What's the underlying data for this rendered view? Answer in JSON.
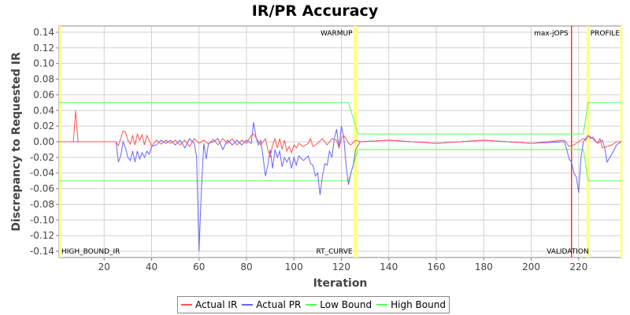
{
  "chart_data": {
    "type": "line",
    "title": "IR/PR Accuracy",
    "xlabel": "Iteration",
    "ylabel": "Discrepancy to Requested IR",
    "xlim": [
      1,
      238
    ],
    "ylim": [
      -0.148,
      0.148
    ],
    "x_ticks": [
      20,
      40,
      60,
      80,
      100,
      120,
      140,
      160,
      180,
      200,
      220
    ],
    "y_ticks": [
      -0.14,
      -0.12,
      -0.1,
      -0.08,
      -0.06,
      -0.04,
      -0.02,
      0.0,
      0.02,
      0.04,
      0.06,
      0.08,
      0.1,
      0.12,
      0.14
    ],
    "y_tick_labels": [
      "-0.14",
      "-0.12",
      "-0.10",
      "-0.08",
      "-0.06",
      "-0.04",
      "-0.02",
      "0.00",
      "0.02",
      "0.04",
      "0.06",
      "0.08",
      "0.10",
      "0.12",
      "0.14"
    ],
    "grid": true,
    "legend_position": "bottom",
    "series": [
      {
        "name": "Actual IR",
        "color": "#ff5555",
        "points": [
          [
            1,
            0
          ],
          [
            7,
            0
          ],
          [
            8,
            0.04
          ],
          [
            9,
            0
          ],
          [
            25,
            0
          ],
          [
            26,
            -0.005
          ],
          [
            27,
            0.004
          ],
          [
            28,
            0.014
          ],
          [
            29,
            0.012
          ],
          [
            30,
            0.002
          ],
          [
            31,
            -0.003
          ],
          [
            32,
            0.008
          ],
          [
            33,
            -0.004
          ],
          [
            34,
            0.01
          ],
          [
            35,
            0.002
          ],
          [
            36,
            0.009
          ],
          [
            37,
            -0.004
          ],
          [
            38,
            0.008
          ],
          [
            39,
            0.002
          ],
          [
            40,
            -0.006
          ],
          [
            42,
            0.002
          ],
          [
            44,
            -0.003
          ],
          [
            46,
            0.002
          ],
          [
            48,
            -0.002
          ],
          [
            50,
            0.002
          ],
          [
            52,
            -0.004
          ],
          [
            54,
            0.002
          ],
          [
            56,
            -0.006
          ],
          [
            58,
            0.004
          ],
          [
            60,
            -0.002
          ],
          [
            62,
            0.002
          ],
          [
            64,
            -0.003
          ],
          [
            66,
            0.003
          ],
          [
            68,
            -0.004
          ],
          [
            70,
            0.004
          ],
          [
            72,
            -0.002
          ],
          [
            74,
            0.004
          ],
          [
            76,
            -0.004
          ],
          [
            78,
            0.002
          ],
          [
            80,
            -0.002
          ],
          [
            82,
            0.008
          ],
          [
            83,
            0.01
          ],
          [
            84,
            0.005
          ],
          [
            86,
            -0.004
          ],
          [
            88,
            0.004
          ],
          [
            89,
            -0.01
          ],
          [
            90,
            -0.02
          ],
          [
            91,
            -0.004
          ],
          [
            92,
            0.004
          ],
          [
            93,
            -0.008
          ],
          [
            94,
            0.004
          ],
          [
            95,
            -0.01
          ],
          [
            96,
            0.002
          ],
          [
            97,
            -0.012
          ],
          [
            98,
            -0.006
          ],
          [
            99,
            -0.014
          ],
          [
            100,
            -0.004
          ],
          [
            101,
            -0.008
          ],
          [
            102,
            -0.002
          ],
          [
            104,
            -0.006
          ],
          [
            106,
            -0.002
          ],
          [
            107,
            0.004
          ],
          [
            108,
            -0.006
          ],
          [
            110,
            -0.002
          ],
          [
            112,
            0.004
          ],
          [
            114,
            -0.004
          ],
          [
            116,
            0.004
          ],
          [
            118,
            0.002
          ],
          [
            119,
            -0.008
          ],
          [
            120,
            0.004
          ],
          [
            121,
            0.008
          ],
          [
            122,
            0.004
          ],
          [
            123,
            -0.002
          ],
          [
            124,
            -0.004
          ],
          [
            126,
            0.002
          ],
          [
            128,
            0
          ],
          [
            140,
            0.002
          ],
          [
            160,
            -0.002
          ],
          [
            180,
            0.002
          ],
          [
            200,
            -0.002
          ],
          [
            214,
            0.002
          ],
          [
            216,
            -0.006
          ],
          [
            218,
            -0.004
          ],
          [
            220,
            0
          ],
          [
            222,
            0.004
          ],
          [
            223,
            0.002
          ],
          [
            224,
            0.008
          ],
          [
            225,
            0.004
          ],
          [
            226,
            0.006
          ],
          [
            227,
            0.002
          ],
          [
            228,
            -0.002
          ],
          [
            229,
            0.004
          ],
          [
            230,
            -0.008
          ],
          [
            232,
            -0.006
          ],
          [
            234,
            -0.004
          ],
          [
            236,
            0
          ],
          [
            238,
            0
          ]
        ]
      },
      {
        "name": "Actual PR",
        "color": "#6666ff",
        "points": [
          [
            1,
            0
          ],
          [
            25,
            0
          ],
          [
            26,
            -0.026
          ],
          [
            27,
            -0.018
          ],
          [
            28,
            0
          ],
          [
            29,
            -0.008
          ],
          [
            30,
            -0.02
          ],
          [
            31,
            -0.024
          ],
          [
            32,
            -0.012
          ],
          [
            33,
            -0.026
          ],
          [
            34,
            -0.012
          ],
          [
            35,
            -0.022
          ],
          [
            36,
            -0.014
          ],
          [
            37,
            -0.02
          ],
          [
            38,
            -0.012
          ],
          [
            39,
            -0.016
          ],
          [
            40,
            -0.006
          ],
          [
            42,
            -0.004
          ],
          [
            44,
            0.002
          ],
          [
            46,
            -0.002
          ],
          [
            48,
            0.002
          ],
          [
            50,
            -0.004
          ],
          [
            52,
            0.002
          ],
          [
            54,
            -0.008
          ],
          [
            56,
            0.004
          ],
          [
            58,
            -0.002
          ],
          [
            59,
            -0.02
          ],
          [
            60,
            -0.14
          ],
          [
            61,
            -0.06
          ],
          [
            62,
            -0.002
          ],
          [
            63,
            -0.022
          ],
          [
            64,
            -0.002
          ],
          [
            66,
            0
          ],
          [
            68,
            0.004
          ],
          [
            70,
            -0.01
          ],
          [
            72,
            0.002
          ],
          [
            74,
            -0.004
          ],
          [
            76,
            0.002
          ],
          [
            78,
            -0.004
          ],
          [
            80,
            0.002
          ],
          [
            82,
            -0.002
          ],
          [
            83,
            0.025
          ],
          [
            84,
            0.006
          ],
          [
            85,
            -0.004
          ],
          [
            86,
            0.002
          ],
          [
            87,
            -0.02
          ],
          [
            88,
            -0.044
          ],
          [
            89,
            -0.03
          ],
          [
            90,
            -0.01
          ],
          [
            91,
            -0.034
          ],
          [
            92,
            -0.01
          ],
          [
            93,
            -0.02
          ],
          [
            94,
            -0.012
          ],
          [
            95,
            -0.032
          ],
          [
            96,
            -0.02
          ],
          [
            97,
            -0.026
          ],
          [
            98,
            -0.02
          ],
          [
            99,
            -0.034
          ],
          [
            100,
            -0.02
          ],
          [
            101,
            -0.03
          ],
          [
            102,
            -0.018
          ],
          [
            104,
            -0.024
          ],
          [
            106,
            -0.018
          ],
          [
            107,
            -0.028
          ],
          [
            108,
            -0.03
          ],
          [
            109,
            -0.044
          ],
          [
            110,
            -0.04
          ],
          [
            111,
            -0.068
          ],
          [
            112,
            -0.044
          ],
          [
            113,
            -0.028
          ],
          [
            114,
            -0.03
          ],
          [
            115,
            -0.012
          ],
          [
            116,
            -0.02
          ],
          [
            117,
            0.004
          ],
          [
            118,
            0.016
          ],
          [
            119,
            -0.008
          ],
          [
            120,
            0.02
          ],
          [
            121,
            0.006
          ],
          [
            122,
            -0.03
          ],
          [
            123,
            -0.055
          ],
          [
            124,
            -0.04
          ],
          [
            125,
            -0.03
          ],
          [
            126,
            -0.01
          ],
          [
            128,
            0
          ],
          [
            140,
            0.002
          ],
          [
            160,
            -0.002
          ],
          [
            180,
            0.002
          ],
          [
            200,
            -0.002
          ],
          [
            214,
            0
          ],
          [
            215,
            -0.01
          ],
          [
            216,
            -0.022
          ],
          [
            217,
            -0.026
          ],
          [
            218,
            -0.04
          ],
          [
            219,
            -0.045
          ],
          [
            220,
            -0.065
          ],
          [
            221,
            -0.02
          ],
          [
            222,
            0
          ],
          [
            224,
            0.008
          ],
          [
            226,
            0.004
          ],
          [
            228,
            -0.002
          ],
          [
            230,
            0.002
          ],
          [
            231,
            -0.008
          ],
          [
            232,
            -0.026
          ],
          [
            234,
            -0.016
          ],
          [
            236,
            -0.004
          ],
          [
            238,
            0
          ]
        ]
      },
      {
        "name": "Low Bound",
        "color": "#55ff55",
        "points": [
          [
            1,
            -0.05
          ],
          [
            123,
            -0.05
          ],
          [
            127,
            -0.01
          ],
          [
            222,
            -0.01
          ],
          [
            224,
            -0.05
          ],
          [
            238,
            -0.05
          ]
        ]
      },
      {
        "name": "High Bound",
        "color": "#55ff55",
        "points": [
          [
            1,
            0.05
          ],
          [
            123,
            0.05
          ],
          [
            127,
            0.01
          ],
          [
            222,
            0.01
          ],
          [
            224,
            0.05
          ],
          [
            238,
            0.05
          ]
        ]
      }
    ],
    "annotations": [
      {
        "label": "WARMUP",
        "x": 126,
        "position": "top",
        "marker_color": "#ffff88"
      },
      {
        "label": "RT_CURVE",
        "x": 126,
        "position": "bottom",
        "marker_color": "#ffff88"
      },
      {
        "label": "max-jOPS",
        "x": 217,
        "position": "top",
        "marker_color": "#ff3333"
      },
      {
        "label": "VALIDATION",
        "x": 217,
        "position": "bottom",
        "marker_color": "#ff3333"
      },
      {
        "label": "PROFILE",
        "x": 224,
        "position": "top",
        "marker_color": "#ffff88"
      },
      {
        "label": "HIGH_BOUND_IR",
        "x": 1,
        "position": "bottom",
        "marker_color": "#ffff88"
      }
    ]
  },
  "legend": {
    "items": [
      {
        "label": "Actual IR",
        "color": "#ff5555"
      },
      {
        "label": "Actual PR",
        "color": "#6666ff"
      },
      {
        "label": "Low Bound",
        "color": "#55ff55"
      },
      {
        "label": "High Bound",
        "color": "#55ff55"
      }
    ]
  }
}
